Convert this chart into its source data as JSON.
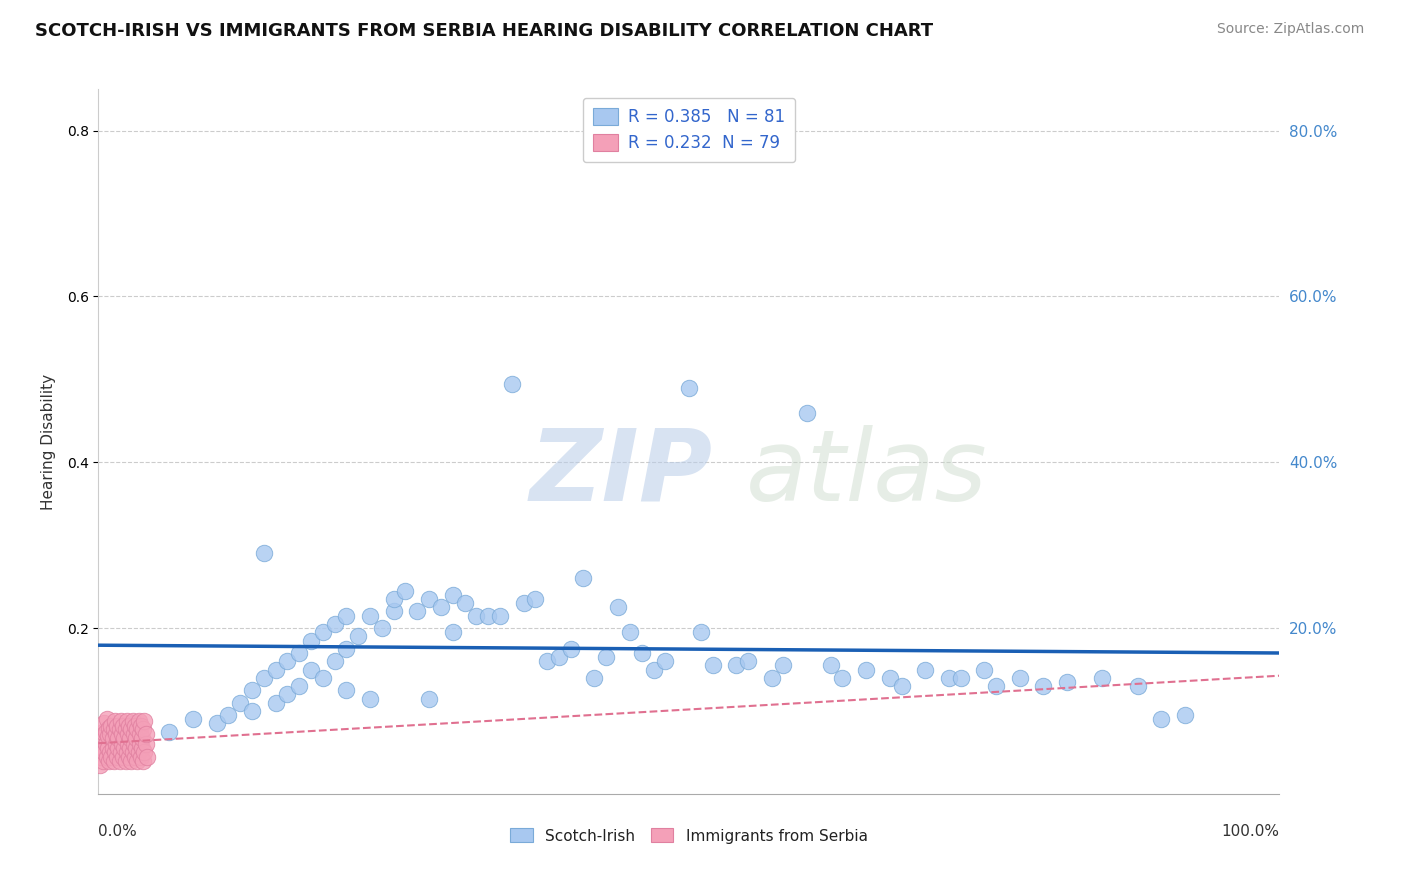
{
  "title": "SCOTCH-IRISH VS IMMIGRANTS FROM SERBIA HEARING DISABILITY CORRELATION CHART",
  "source": "Source: ZipAtlas.com",
  "ylabel": "Hearing Disability",
  "blue_R": "0.385",
  "blue_N": "81",
  "pink_R": "0.232",
  "pink_N": "79",
  "blue_color": "#a8c8f0",
  "pink_color": "#f4a0b8",
  "blue_edge_color": "#7aaad8",
  "pink_edge_color": "#e080a0",
  "trend_blue_color": "#1a5fb4",
  "trend_pink_color": "#e07090",
  "background_color": "#ffffff",
  "watermark_zip": "ZIP",
  "watermark_atlas": "atlas",
  "blue_scatter_x": [
    0.03,
    0.06,
    0.08,
    0.1,
    0.11,
    0.12,
    0.13,
    0.13,
    0.14,
    0.14,
    0.15,
    0.15,
    0.16,
    0.16,
    0.17,
    0.17,
    0.18,
    0.18,
    0.19,
    0.19,
    0.2,
    0.2,
    0.21,
    0.21,
    0.21,
    0.22,
    0.23,
    0.23,
    0.24,
    0.25,
    0.25,
    0.26,
    0.27,
    0.28,
    0.28,
    0.29,
    0.3,
    0.3,
    0.31,
    0.32,
    0.33,
    0.34,
    0.35,
    0.36,
    0.37,
    0.38,
    0.39,
    0.4,
    0.41,
    0.42,
    0.43,
    0.44,
    0.45,
    0.46,
    0.47,
    0.48,
    0.5,
    0.51,
    0.52,
    0.54,
    0.55,
    0.57,
    0.58,
    0.6,
    0.62,
    0.63,
    0.65,
    0.67,
    0.68,
    0.7,
    0.72,
    0.73,
    0.75,
    0.76,
    0.78,
    0.8,
    0.82,
    0.85,
    0.88,
    0.9,
    0.92
  ],
  "blue_scatter_y": [
    0.085,
    0.075,
    0.09,
    0.085,
    0.095,
    0.11,
    0.1,
    0.125,
    0.29,
    0.14,
    0.11,
    0.15,
    0.12,
    0.16,
    0.13,
    0.17,
    0.15,
    0.185,
    0.14,
    0.195,
    0.16,
    0.205,
    0.175,
    0.215,
    0.125,
    0.19,
    0.215,
    0.115,
    0.2,
    0.22,
    0.235,
    0.245,
    0.22,
    0.235,
    0.115,
    0.225,
    0.195,
    0.24,
    0.23,
    0.215,
    0.215,
    0.215,
    0.495,
    0.23,
    0.235,
    0.16,
    0.165,
    0.175,
    0.26,
    0.14,
    0.165,
    0.225,
    0.195,
    0.17,
    0.15,
    0.16,
    0.49,
    0.195,
    0.155,
    0.155,
    0.16,
    0.14,
    0.155,
    0.46,
    0.155,
    0.14,
    0.15,
    0.14,
    0.13,
    0.15,
    0.14,
    0.14,
    0.15,
    0.13,
    0.14,
    0.13,
    0.135,
    0.14,
    0.13,
    0.09,
    0.095
  ],
  "pink_scatter_x": [
    0.001,
    0.002,
    0.003,
    0.003,
    0.004,
    0.004,
    0.005,
    0.005,
    0.006,
    0.006,
    0.007,
    0.007,
    0.008,
    0.008,
    0.009,
    0.009,
    0.01,
    0.01,
    0.011,
    0.011,
    0.012,
    0.012,
    0.013,
    0.013,
    0.014,
    0.014,
    0.015,
    0.015,
    0.016,
    0.016,
    0.017,
    0.017,
    0.018,
    0.018,
    0.019,
    0.019,
    0.02,
    0.02,
    0.021,
    0.021,
    0.022,
    0.022,
    0.023,
    0.023,
    0.024,
    0.024,
    0.025,
    0.025,
    0.026,
    0.026,
    0.027,
    0.027,
    0.028,
    0.028,
    0.029,
    0.029,
    0.03,
    0.03,
    0.031,
    0.031,
    0.032,
    0.032,
    0.033,
    0.033,
    0.034,
    0.034,
    0.035,
    0.035,
    0.036,
    0.036,
    0.037,
    0.037,
    0.038,
    0.038,
    0.039,
    0.039,
    0.04,
    0.04,
    0.041
  ],
  "pink_scatter_y": [
    0.035,
    0.045,
    0.055,
    0.07,
    0.04,
    0.075,
    0.05,
    0.085,
    0.06,
    0.075,
    0.045,
    0.09,
    0.055,
    0.07,
    0.04,
    0.08,
    0.05,
    0.072,
    0.045,
    0.082,
    0.055,
    0.068,
    0.04,
    0.078,
    0.05,
    0.088,
    0.06,
    0.072,
    0.045,
    0.082,
    0.055,
    0.068,
    0.04,
    0.078,
    0.05,
    0.088,
    0.06,
    0.072,
    0.045,
    0.082,
    0.055,
    0.068,
    0.04,
    0.078,
    0.05,
    0.088,
    0.06,
    0.072,
    0.045,
    0.082,
    0.055,
    0.068,
    0.04,
    0.078,
    0.05,
    0.088,
    0.06,
    0.072,
    0.045,
    0.082,
    0.055,
    0.068,
    0.04,
    0.078,
    0.05,
    0.088,
    0.06,
    0.072,
    0.045,
    0.082,
    0.055,
    0.068,
    0.04,
    0.078,
    0.05,
    0.088,
    0.06,
    0.072,
    0.045
  ],
  "xlim": [
    0,
    1.0
  ],
  "ylim": [
    0,
    0.85
  ],
  "yticks": [
    0.2,
    0.4,
    0.6,
    0.8
  ],
  "ytick_labels": [
    "20.0%",
    "40.0%",
    "60.0%",
    "80.0%"
  ]
}
